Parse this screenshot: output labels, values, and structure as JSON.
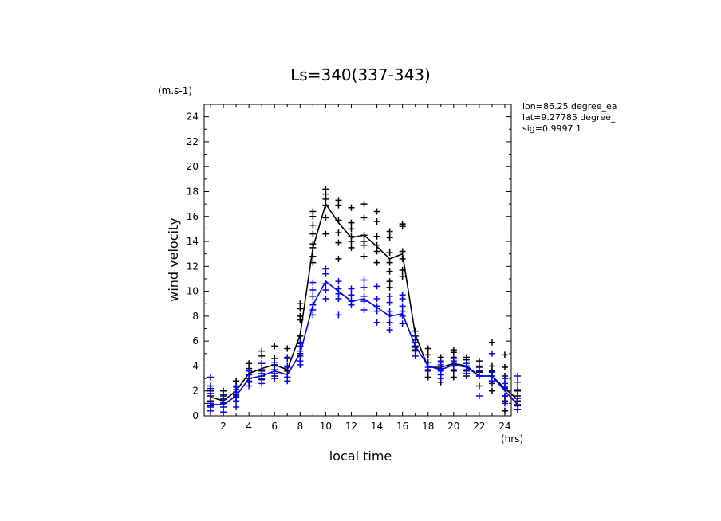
{
  "chart_data": {
    "type": "line",
    "title": "Ls=340(337-343)",
    "xlabel": "local time",
    "ylabel": "wind velocity",
    "x_unit": "(hrs)",
    "y_unit": "(m.s-1)",
    "xlim": [
      0.5,
      24.5
    ],
    "ylim": [
      0,
      25
    ],
    "x_ticks": [
      "2",
      "4",
      "6",
      "8",
      "10",
      "12",
      "14",
      "16",
      "18",
      "20",
      "22",
      "24"
    ],
    "y_ticks": [
      "0",
      "2",
      "4",
      "6",
      "8",
      "10",
      "12",
      "14",
      "16",
      "18",
      "20",
      "22",
      "24"
    ],
    "info_lines": [
      "lon=86.25 degree_ea",
      "lat=9.27785 degree_",
      "sig=0.9997 1"
    ],
    "x": [
      1,
      2,
      3,
      4,
      5,
      6,
      7,
      8,
      9,
      10,
      11,
      12,
      13,
      14,
      15,
      16,
      17,
      18,
      19,
      20,
      21,
      22,
      23,
      24,
      25
    ],
    "series": [
      {
        "color": "#000000",
        "mean": [
          1.5,
          1.2,
          2.0,
          3.4,
          3.8,
          4.1,
          3.7,
          6.5,
          13.5,
          17.0,
          15.5,
          14.3,
          14.5,
          13.6,
          12.6,
          13.0,
          6.5,
          3.9,
          3.9,
          4.2,
          4.0,
          3.2,
          3.2,
          2.2,
          1.3
        ],
        "samples": [
          [
            2.4,
            2.0,
            1.6,
            1.2,
            0.8
          ],
          [
            2.0,
            1.6,
            1.4,
            1.1
          ],
          [
            2.8,
            2.4,
            2.1,
            1.7,
            1.5
          ],
          [
            4.2,
            3.8,
            3.3,
            3.0,
            2.7
          ],
          [
            5.2,
            4.8,
            4.2,
            3.6,
            3.2,
            2.9
          ],
          [
            5.6,
            4.6,
            4.1,
            3.7,
            3.2
          ],
          [
            5.4,
            4.7,
            4.0,
            3.6,
            3.1
          ],
          [
            9.0,
            8.6,
            8.0,
            7.7,
            6.4,
            5.8,
            5.0
          ],
          [
            16.4,
            16.0,
            15.3,
            14.6,
            13.8,
            13.5,
            12.8,
            12.3
          ],
          [
            18.2,
            17.8,
            17.4,
            16.9,
            15.9,
            14.6
          ],
          [
            17.3,
            16.9,
            15.7,
            14.7,
            13.9,
            12.6
          ],
          [
            16.7,
            15.5,
            15.0,
            14.4,
            14.0,
            13.5
          ],
          [
            17.0,
            15.9,
            14.5,
            14.0,
            13.7,
            12.8
          ],
          [
            16.4,
            15.6,
            14.4,
            13.7,
            13.2,
            12.3
          ],
          [
            14.8,
            14.3,
            13.1,
            12.3,
            11.6,
            10.8,
            10.3
          ],
          [
            15.4,
            15.2,
            13.2,
            12.6,
            11.7,
            11.2
          ],
          [
            6.8,
            6.4,
            6.1,
            5.6,
            5.3
          ],
          [
            5.4,
            4.9,
            4.3,
            3.7,
            3.1
          ],
          [
            4.7,
            4.3,
            3.8,
            3.3,
            2.7
          ],
          [
            5.3,
            5.1,
            4.7,
            4.3,
            3.6,
            3.1
          ],
          [
            4.7,
            4.5,
            4.0,
            3.6,
            3.2
          ],
          [
            4.4,
            3.9,
            3.5,
            3.2,
            2.4
          ],
          [
            5.9,
            4.0,
            3.6,
            3.2,
            2.6,
            2.0
          ],
          [
            4.9,
            3.9,
            3.2,
            2.2,
            1.6,
            1.2,
            0.4
          ],
          [
            2.0,
            1.6,
            1.2,
            0.8,
            0.5
          ]
        ]
      },
      {
        "color": "#0000ff",
        "mean": [
          0.9,
          0.9,
          1.6,
          3.0,
          3.2,
          3.6,
          3.3,
          5.0,
          8.9,
          10.8,
          10.0,
          9.2,
          9.4,
          8.7,
          8.0,
          8.2,
          5.6,
          4.0,
          3.7,
          4.1,
          3.9,
          3.2,
          3.2,
          2.0,
          0.9
        ],
        "samples": [
          [
            3.1,
            2.2,
            1.8,
            1.0,
            0.7,
            0.4
          ],
          [
            1.7,
            1.3,
            1.0,
            0.7,
            0.3
          ],
          [
            2.3,
            1.9,
            1.6,
            1.2,
            0.7
          ],
          [
            3.6,
            3.3,
            2.8,
            2.4
          ],
          [
            4.2,
            3.7,
            3.4,
            3.0,
            2.6
          ],
          [
            4.3,
            4.0,
            3.4,
            3.0
          ],
          [
            4.6,
            3.9,
            3.1,
            2.8
          ],
          [
            5.9,
            5.6,
            5.2,
            4.8,
            4.4,
            4.1
          ],
          [
            10.7,
            10.1,
            9.6,
            8.9,
            8.5,
            8.1
          ],
          [
            11.8,
            11.4,
            10.6,
            10.1,
            9.4
          ],
          [
            10.8,
            10.2,
            9.8,
            9.4,
            8.1
          ],
          [
            10.2,
            9.7,
            9.2,
            8.9
          ],
          [
            10.9,
            10.3,
            9.6,
            9.2,
            8.5
          ],
          [
            10.4,
            9.4,
            8.8,
            8.4,
            7.5
          ],
          [
            9.6,
            9.1,
            8.4,
            8.1,
            7.5,
            6.9
          ],
          [
            9.7,
            9.4,
            8.8,
            8.4,
            8.0,
            7.4
          ],
          [
            6.4,
            5.9,
            5.5,
            5.2,
            4.8
          ],
          [
            4.3,
            3.9,
            3.6
          ],
          [
            4.4,
            4.1,
            3.6,
            3.3,
            3.0
          ],
          [
            4.6,
            4.4,
            4.0,
            3.7
          ],
          [
            4.2,
            4.0,
            3.7,
            3.4
          ],
          [
            4.0,
            3.6,
            3.2,
            1.6
          ],
          [
            5.0,
            3.5,
            3.2,
            2.8
          ],
          [
            3.0,
            2.6,
            2.3,
            1.6,
            1.0
          ],
          [
            3.2,
            2.7,
            2.1,
            1.4,
            0.9,
            0.5
          ]
        ]
      }
    ]
  }
}
